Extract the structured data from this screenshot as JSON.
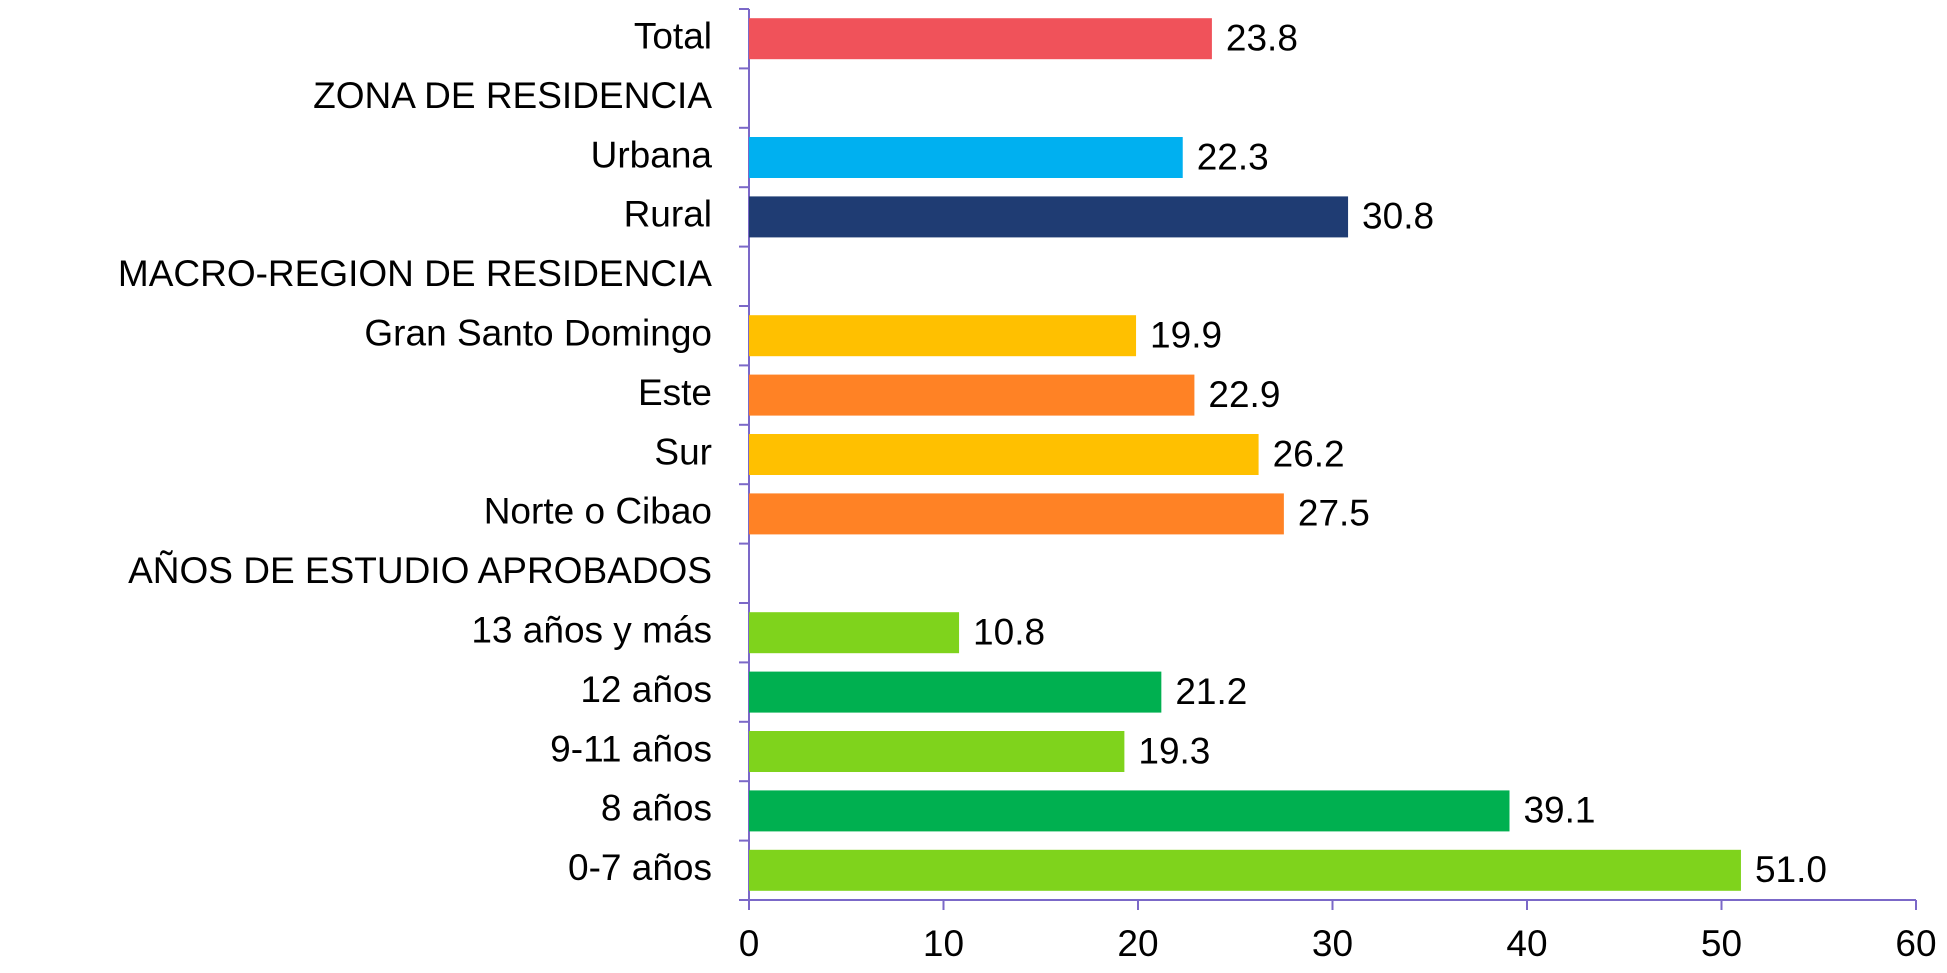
{
  "chart_data": {
    "type": "barh",
    "categories": [
      "Total",
      "ZONA DE RESIDENCIA",
      "Urbana",
      "Rural",
      "MACRO-REGION DE RESIDENCIA",
      "Gran Santo Domingo",
      "Este",
      "Sur",
      "Norte o Cibao",
      "AÑOS DE ESTUDIO APROBADOS",
      "13 años y más",
      "12 años",
      "9-11 años",
      "8 años",
      "0-7 años"
    ],
    "values": [
      23.8,
      null,
      22.3,
      30.8,
      null,
      19.9,
      22.9,
      26.2,
      27.5,
      null,
      10.8,
      21.2,
      19.3,
      39.1,
      51.0
    ],
    "value_labels": [
      "23.8",
      null,
      "22.3",
      "30.8",
      null,
      "19.9",
      "22.9",
      "26.2",
      "27.5",
      null,
      "10.8",
      "21.2",
      "19.3",
      "39.1",
      "51.0"
    ],
    "colors": [
      "#f0525a",
      null,
      "#00b0f0",
      "#1f3c73",
      null,
      "#ffc000",
      "#ff8225",
      "#ffc000",
      "#ff8225",
      null,
      "#7fd31c",
      "#00b050",
      "#7fd31c",
      "#00b050",
      "#7fd31c"
    ],
    "xlim": [
      0,
      60
    ],
    "xticks": [
      0,
      10,
      20,
      30,
      40,
      50,
      60
    ],
    "grid": false,
    "axis_color": "#7b68c8"
  }
}
